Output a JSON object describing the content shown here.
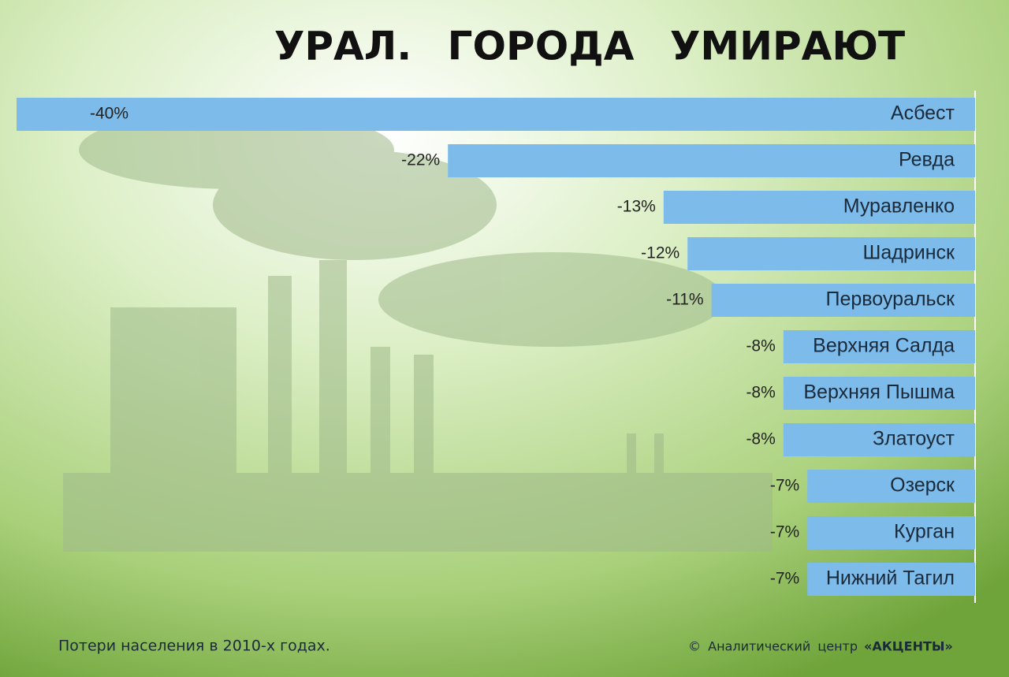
{
  "chart_data": {
    "type": "barh",
    "title": "УРАЛ.  ГОРОДА  УМИРАЮТ",
    "categories": [
      "Асбест",
      "Ревда",
      "Муравленко",
      "Шадринск",
      "Первоуральск",
      "Верхняя Салда",
      "Верхняя Пышма",
      "Златоуст",
      "Озерск",
      "Курган",
      "Нижний Тагил"
    ],
    "values": [
      -40,
      -22,
      -13,
      -12,
      -11,
      -8,
      -8,
      -8,
      -7,
      -7,
      -7
    ],
    "value_labels": [
      "-40%",
      "-22%",
      "-13%",
      "-12%",
      "-11%",
      "-8%",
      "-8%",
      "-8%",
      "-7%",
      "-7%",
      "-7%"
    ],
    "color": "#7dbbea",
    "xlim": [
      -35,
      0
    ],
    "footnote": "Потери населения в 2010-х годах.",
    "source": "© Аналитический центр",
    "source_brand": "«АКЦЕНТЫ»"
  }
}
